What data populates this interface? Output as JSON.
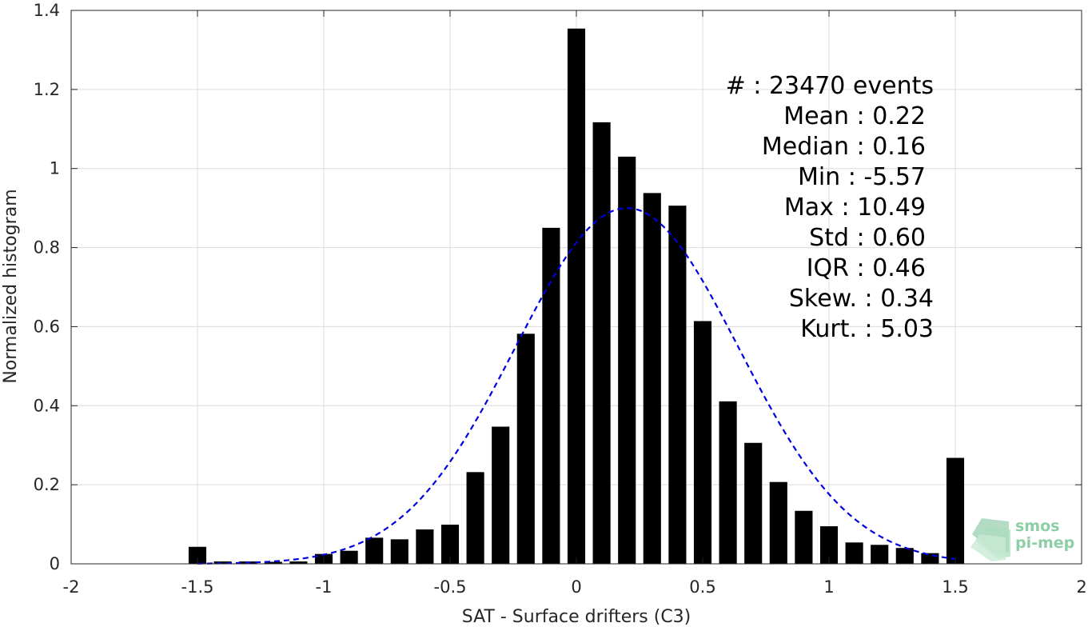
{
  "chart_data": {
    "type": "bar",
    "title": "",
    "xlabel": "SAT - Surface drifters (C3)",
    "ylabel": "Normalized histogram",
    "xlim": [
      -2,
      2
    ],
    "ylim": [
      0,
      1.4
    ],
    "grid": true,
    "x_ticks": [
      -2,
      -1.5,
      -1,
      -0.5,
      0,
      0.5,
      1,
      1.5,
      2
    ],
    "x_tick_labels": [
      "-2",
      "-1.5",
      "-1",
      "-0.5",
      "0",
      "0.5",
      "1",
      "1.5",
      "2"
    ],
    "y_ticks": [
      0,
      0.2,
      0.4,
      0.6,
      0.8,
      1,
      1.2,
      1.4
    ],
    "y_tick_labels": [
      "0",
      "0.2",
      "0.4",
      "0.6",
      "0.8",
      "1",
      "1.2",
      "1.4"
    ],
    "bin_width": 0.1,
    "bar_color": "#000000",
    "bin_centers": [
      -1.5,
      -1.4,
      -1.3,
      -1.2,
      -1.1,
      -1.0,
      -0.9,
      -0.8,
      -0.7,
      -0.6,
      -0.5,
      -0.4,
      -0.3,
      -0.2,
      -0.1,
      0.0,
      0.1,
      0.2,
      0.3,
      0.4,
      0.5,
      0.6,
      0.7,
      0.8,
      0.9,
      1.0,
      1.1,
      1.2,
      1.3,
      1.4,
      1.5
    ],
    "values": [
      0.043,
      0.006,
      0.006,
      0.005,
      0.006,
      0.025,
      0.033,
      0.066,
      0.062,
      0.087,
      0.099,
      0.232,
      0.347,
      0.582,
      0.85,
      1.354,
      1.117,
      1.03,
      0.938,
      0.906,
      0.614,
      0.411,
      0.306,
      0.207,
      0.134,
      0.095,
      0.054,
      0.048,
      0.04,
      0.027,
      0.268
    ],
    "fit": {
      "type": "normal",
      "color": "#0000e0",
      "style": "dashed",
      "mean": 0.2,
      "std": 0.443,
      "peak": 0.9,
      "x_range": [
        -1.5,
        1.5
      ]
    },
    "annotations": [
      {
        "label": "#  : 23470 events"
      },
      {
        "label": "Mean : 0.22"
      },
      {
        "label": "Median : 0.16"
      },
      {
        "label": "Min : -5.57"
      },
      {
        "label": "Max : 10.49"
      },
      {
        "label": "Std : 0.60"
      },
      {
        "label": "IQR : 0.46"
      },
      {
        "label": "Skew. : 0.34"
      },
      {
        "label": "Kurt. : 5.03"
      }
    ],
    "logo": {
      "line1": "smos",
      "line2": "pi-mep",
      "color": "#8ccfa5"
    }
  }
}
